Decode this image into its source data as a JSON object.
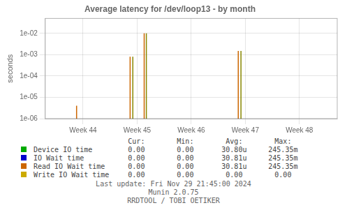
{
  "chart_data": {
    "type": "spike",
    "title": "Average latency for /dev/loop13 - by month",
    "ylabel": "seconds",
    "x": [
      43.88,
      44.87,
      44.92,
      45.13,
      45.17,
      46.87,
      46.92
    ],
    "values": [
      4e-06,
      0.0008,
      0.0008,
      0.01,
      0.01,
      0.0015,
      0.0015
    ],
    "colors": [
      "#cc6600",
      "#cc6600",
      "#888800",
      "#cc6600",
      "#888800",
      "#cc6600",
      "#888800"
    ],
    "xlim": [
      43.3,
      48.7
    ],
    "xticks": [
      {
        "value": 44,
        "label": "Week 44"
      },
      {
        "value": 45,
        "label": "Week 45"
      },
      {
        "value": 46,
        "label": "Week 46"
      },
      {
        "value": 47,
        "label": "Week 47"
      },
      {
        "value": 48,
        "label": "Week 48"
      }
    ],
    "ylim": [
      1e-06,
      0.05
    ],
    "yticks": [
      {
        "value": 1e-06,
        "label": "1e-06"
      },
      {
        "value": 1e-05,
        "label": "1e-05"
      },
      {
        "value": 0.0001,
        "label": "1e-04"
      },
      {
        "value": 0.001,
        "label": "1e-03"
      },
      {
        "value": 0.01,
        "label": "1e-02"
      }
    ],
    "log": "y",
    "grid": true,
    "legend_table": {
      "header": [
        "Cur:",
        "Min:",
        "Avg:",
        "Max:"
      ],
      "rows": [
        {
          "name": "Device IO time",
          "color": "#00aa00",
          "cells": [
            "0.00",
            "0.00",
            "30.80u",
            "245.35m"
          ]
        },
        {
          "name": "IO Wait time",
          "color": "#0000cc",
          "cells": [
            "0.00",
            "0.00",
            "30.81u",
            "245.35m"
          ]
        },
        {
          "name": "Read IO Wait time",
          "color": "#cc6600",
          "cells": [
            "0.00",
            "0.00",
            "30.81u",
            "245.35m"
          ]
        },
        {
          "name": "Write IO Wait time",
          "color": "#ccaa00",
          "cells": [
            "0.00",
            "0.00",
            "0.00",
            "0.00"
          ]
        }
      ]
    },
    "annotations": [
      "Last update: Fri Nov 29 21:45:00 2024",
      "Munin 2.0.75",
      "RRDTOOL / TOBI OETIKER"
    ]
  }
}
